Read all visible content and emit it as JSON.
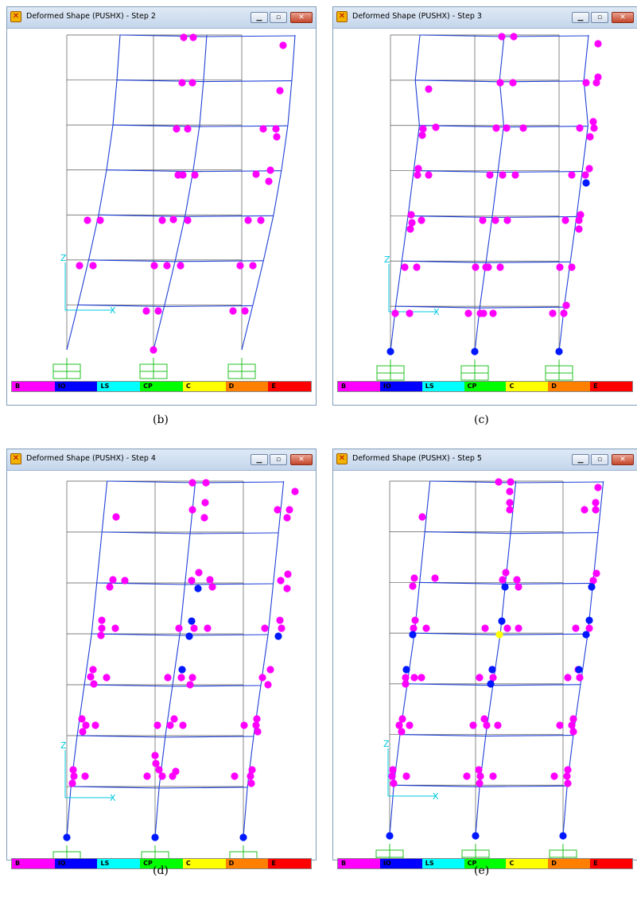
{
  "panels": [
    {
      "title": "Deformed Shape (PUSHX) - Step 2",
      "caption": "(b)",
      "legend_labels": [
        "B",
        "IO",
        "LS",
        "CP",
        "C",
        "D",
        "E"
      ],
      "axis_x_label": "X",
      "axis_z_label": "Z",
      "hinges": {
        "pink": [
          [
            231,
            47
          ],
          [
            243,
            47
          ],
          [
            356,
            57
          ],
          [
            229,
            104
          ],
          [
            242,
            104
          ],
          [
            352,
            114
          ],
          [
            222,
            162
          ],
          [
            236,
            162
          ],
          [
            331,
            162
          ],
          [
            347,
            162
          ],
          [
            348,
            172
          ],
          [
            224,
            220
          ],
          [
            230,
            220
          ],
          [
            245,
            220
          ],
          [
            322,
            219
          ],
          [
            340,
            214
          ],
          [
            338,
            228
          ],
          [
            110,
            277
          ],
          [
            126,
            277
          ],
          [
            204,
            277
          ],
          [
            218,
            276
          ],
          [
            236,
            277
          ],
          [
            312,
            277
          ],
          [
            328,
            277
          ],
          [
            100,
            334
          ],
          [
            117,
            334
          ],
          [
            194,
            334
          ],
          [
            210,
            334
          ],
          [
            227,
            334
          ],
          [
            302,
            334
          ],
          [
            318,
            334
          ],
          [
            184,
            391
          ],
          [
            199,
            391
          ],
          [
            293,
            391
          ],
          [
            308,
            391
          ],
          [
            193,
            440
          ]
        ],
        "blue": [],
        "yellow": []
      }
    },
    {
      "title": "Deformed Shape (PUSHX) - Step 3",
      "caption": "(c)",
      "legend_labels": [
        "B",
        "IO",
        "LS",
        "CP",
        "C",
        "D",
        "E"
      ],
      "axis_x_label": "X",
      "axis_z_label": "Z",
      "hinges": {
        "pink": [
          [
            631,
            46
          ],
          [
            646,
            46
          ],
          [
            752,
            55
          ],
          [
            629,
            104
          ],
          [
            645,
            104
          ],
          [
            737,
            104
          ],
          [
            750,
            104
          ],
          [
            752,
            97
          ],
          [
            539,
            112
          ],
          [
            532,
            162
          ],
          [
            548,
            160
          ],
          [
            531,
            170
          ],
          [
            624,
            161
          ],
          [
            637,
            161
          ],
          [
            658,
            161
          ],
          [
            729,
            161
          ],
          [
            747,
            161
          ],
          [
            746,
            153
          ],
          [
            742,
            172
          ],
          [
            526,
            212
          ],
          [
            525,
            220
          ],
          [
            539,
            220
          ],
          [
            616,
            220
          ],
          [
            632,
            220
          ],
          [
            648,
            220
          ],
          [
            719,
            220
          ],
          [
            736,
            220
          ],
          [
            741,
            212
          ],
          [
            517,
            270
          ],
          [
            518,
            280
          ],
          [
            530,
            277
          ],
          [
            516,
            288
          ],
          [
            607,
            277
          ],
          [
            623,
            277
          ],
          [
            638,
            277
          ],
          [
            711,
            277
          ],
          [
            728,
            277
          ],
          [
            730,
            270
          ],
          [
            728,
            288
          ],
          [
            509,
            336
          ],
          [
            524,
            336
          ],
          [
            598,
            336
          ],
          [
            614,
            336
          ],
          [
            611,
            336
          ],
          [
            629,
            336
          ],
          [
            704,
            336
          ],
          [
            719,
            336
          ],
          [
            497,
            394
          ],
          [
            515,
            394
          ],
          [
            589,
            394
          ],
          [
            604,
            394
          ],
          [
            608,
            394
          ],
          [
            620,
            394
          ],
          [
            695,
            394
          ],
          [
            709,
            394
          ],
          [
            712,
            384
          ]
        ],
        "blue": [
          [
            737,
            230
          ],
          [
            491,
            442
          ],
          [
            597,
            442
          ],
          [
            703,
            442
          ]
        ],
        "yellow": []
      }
    },
    {
      "title": "Deformed Shape (PUSHX) - Step 4",
      "caption": "(d)",
      "legend_labels": [
        "B",
        "IO",
        "LS",
        "CP",
        "C",
        "D",
        "E"
      ],
      "axis_x_label": "X",
      "axis_z_label": "Z",
      "hinges": {
        "pink": [
          [
            242,
            607
          ],
          [
            259,
            607
          ],
          [
            371,
            618
          ],
          [
            258,
            632
          ],
          [
            242,
            641
          ],
          [
            257,
            651
          ],
          [
            364,
            641
          ],
          [
            349,
            641
          ],
          [
            361,
            651
          ],
          [
            146,
            650
          ],
          [
            142,
            729
          ],
          [
            157,
            730
          ],
          [
            138,
            738
          ],
          [
            250,
            720
          ],
          [
            241,
            730
          ],
          [
            264,
            729
          ],
          [
            267,
            738
          ],
          [
            353,
            730
          ],
          [
            362,
            722
          ],
          [
            361,
            740
          ],
          [
            128,
            780
          ],
          [
            128,
            790
          ],
          [
            127,
            799
          ],
          [
            145,
            790
          ],
          [
            225,
            790
          ],
          [
            244,
            790
          ],
          [
            261,
            790
          ],
          [
            333,
            790
          ],
          [
            354,
            790
          ],
          [
            352,
            780
          ],
          [
            117,
            842
          ],
          [
            114,
            851
          ],
          [
            118,
            860
          ],
          [
            134,
            852
          ],
          [
            211,
            852
          ],
          [
            228,
            852
          ],
          [
            242,
            852
          ],
          [
            239,
            861
          ],
          [
            330,
            852
          ],
          [
            340,
            842
          ],
          [
            337,
            861
          ],
          [
            103,
            904
          ],
          [
            108,
            912
          ],
          [
            104,
            920
          ],
          [
            120,
            912
          ],
          [
            198,
            912
          ],
          [
            214,
            912
          ],
          [
            219,
            904
          ],
          [
            230,
            912
          ],
          [
            307,
            912
          ],
          [
            322,
            912
          ],
          [
            323,
            904
          ],
          [
            324,
            920
          ],
          [
            92,
            968
          ],
          [
            93,
            976
          ],
          [
            91,
            985
          ],
          [
            107,
            976
          ],
          [
            185,
            976
          ],
          [
            200,
            968
          ],
          [
            204,
            976
          ],
          [
            217,
            976
          ],
          [
            221,
            970
          ],
          [
            295,
            976
          ],
          [
            315,
            976
          ],
          [
            317,
            968
          ],
          [
            316,
            985
          ],
          [
            195,
            950
          ],
          [
            196,
            960
          ]
        ],
        "blue": [
          [
            249,
            740
          ],
          [
            241,
            781
          ],
          [
            238,
            800
          ],
          [
            350,
            800
          ],
          [
            229,
            842
          ],
          [
            84,
            1053
          ],
          [
            195,
            1053
          ],
          [
            306,
            1053
          ]
        ],
        "yellow": []
      }
    },
    {
      "title": "Deformed Shape (PUSHX) - Step 5",
      "caption": "(e)",
      "legend_labels": [
        "B",
        "IO",
        "LS",
        "CP",
        "C",
        "D",
        "E"
      ],
      "axis_x_label": "X",
      "axis_z_label": "Z",
      "hinges": {
        "pink": [
          [
            627,
            606
          ],
          [
            642,
            606
          ],
          [
            752,
            613
          ],
          [
            641,
            618
          ],
          [
            641,
            632
          ],
          [
            641,
            641
          ],
          [
            735,
            641
          ],
          [
            749,
            641
          ],
          [
            749,
            632
          ],
          [
            531,
            650
          ],
          [
            521,
            727
          ],
          [
            519,
            737
          ],
          [
            547,
            727
          ],
          [
            636,
            720
          ],
          [
            632,
            729
          ],
          [
            650,
            729
          ],
          [
            652,
            738
          ],
          [
            750,
            721
          ],
          [
            746,
            730
          ],
          [
            522,
            780
          ],
          [
            536,
            790
          ],
          [
            520,
            790
          ],
          [
            610,
            790
          ],
          [
            638,
            790
          ],
          [
            652,
            790
          ],
          [
            724,
            790
          ],
          [
            741,
            790
          ],
          [
            521,
            852
          ],
          [
            510,
            852
          ],
          [
            510,
            860
          ],
          [
            530,
            852
          ],
          [
            603,
            852
          ],
          [
            620,
            852
          ],
          [
            619,
            842
          ],
          [
            714,
            852
          ],
          [
            729,
            852
          ],
          [
            727,
            842
          ],
          [
            506,
            904
          ],
          [
            502,
            912
          ],
          [
            505,
            920
          ],
          [
            515,
            912
          ],
          [
            595,
            912
          ],
          [
            612,
            912
          ],
          [
            609,
            904
          ],
          [
            626,
            912
          ],
          [
            704,
            912
          ],
          [
            719,
            912
          ],
          [
            721,
            904
          ],
          [
            721,
            920
          ],
          [
            494,
            968
          ],
          [
            493,
            976
          ],
          [
            495,
            985
          ],
          [
            511,
            976
          ],
          [
            587,
            976
          ],
          [
            602,
            968
          ],
          [
            604,
            976
          ],
          [
            620,
            976
          ],
          [
            603,
            985
          ],
          [
            697,
            976
          ],
          [
            713,
            976
          ],
          [
            714,
            968
          ],
          [
            714,
            985
          ]
        ],
        "blue": [
          [
            635,
            738
          ],
          [
            744,
            738
          ],
          [
            631,
            781
          ],
          [
            519,
            798
          ],
          [
            737,
            798
          ],
          [
            741,
            780
          ],
          [
            511,
            842
          ],
          [
            619,
            842
          ],
          [
            617,
            860
          ],
          [
            728,
            842
          ],
          [
            490,
            1051
          ],
          [
            598,
            1051
          ],
          [
            708,
            1051
          ]
        ],
        "yellow": [
          [
            628,
            798
          ]
        ]
      }
    }
  ],
  "legend_colors": [
    "#ff00ff",
    "#0000ff",
    "#00ffff",
    "#00ff00",
    "#ffff00",
    "#ff8000",
    "#ff0000"
  ]
}
